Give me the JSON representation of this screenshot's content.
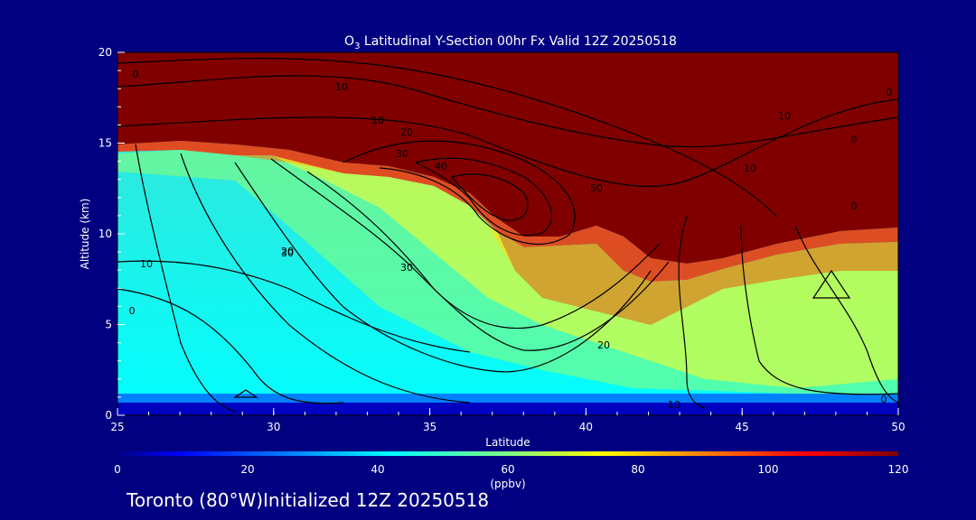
{
  "chart_data": {
    "type": "heatmap",
    "title_main": "O",
    "title_sub": "3",
    "title_rest": " Latitudinal Y-Section 00hr  Fx Valid 12Z 20250518",
    "xlabel": "Latitude",
    "ylabel": "Altitude (km)",
    "xlim": [
      25,
      50
    ],
    "ylim": [
      0,
      20
    ],
    "x_ticks": [
      "25",
      "30",
      "35",
      "40",
      "45",
      "50"
    ],
    "y_ticks": [
      "0",
      "5",
      "10",
      "15",
      "20"
    ],
    "colorbar": {
      "range": [
        0,
        120
      ],
      "ticks": [
        "0",
        "20",
        "40",
        "60",
        "80",
        "100",
        "120"
      ],
      "unit": "(ppbv)"
    },
    "contour_labels": [
      "0",
      "10",
      "10",
      "20",
      "30",
      "40",
      "50",
      "30",
      "10",
      "20",
      "30",
      "10",
      "20",
      "10",
      "0",
      "0",
      "0",
      "0",
      "10",
      "0"
    ],
    "footer": "Toronto (80°W)Initialized 12Z 20250518"
  },
  "colors": {
    "background": "#000080",
    "stratosphere": "#800000",
    "foreground": "#ffffff",
    "contour": "#000000"
  }
}
